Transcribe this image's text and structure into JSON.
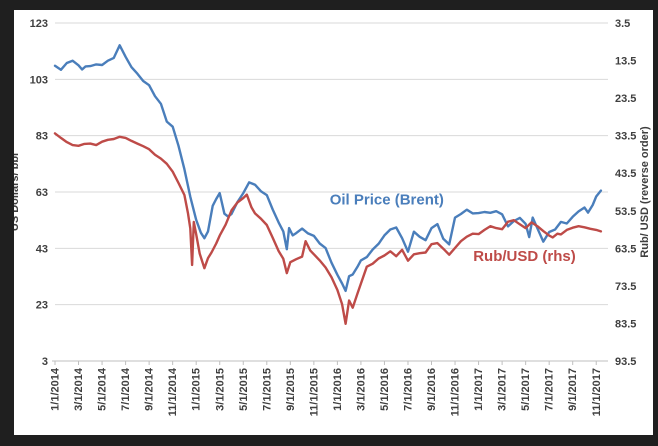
{
  "chart_data": {
    "type": "line",
    "title": "",
    "frame_color": "#1f1f1f",
    "plot": {
      "background": "#ffffff",
      "grid": true,
      "gridline_color": "#d9d9d9",
      "axis_line_color": "#bfbfbf",
      "tick_label_color": "#3f3f3f"
    },
    "x_axis": {
      "start": "1/1/2014",
      "end": "11/1/2017",
      "tick_months": [
        0,
        2,
        4,
        6,
        8,
        10,
        12,
        14,
        16,
        18,
        20,
        22,
        24,
        26,
        28,
        30,
        32,
        34,
        36,
        38,
        40,
        42,
        44,
        46
      ],
      "tick_labels": [
        "1/1/2014",
        "3/1/2014",
        "5/1/2014",
        "7/1/2014",
        "9/1/2014",
        "11/1/2014",
        "1/1/2015",
        "3/1/2015",
        "5/1/2015",
        "7/1/2015",
        "9/1/2015",
        "11/1/2015",
        "1/1/2016",
        "3/1/2016",
        "5/1/2016",
        "7/1/2016",
        "9/1/2016",
        "11/1/2016",
        "1/1/2017",
        "3/1/2017",
        "5/1/2017",
        "7/1/2017",
        "9/1/2017",
        "11/1/2017"
      ]
    },
    "left_axis": {
      "title": "US Dollars/ bbl",
      "min": 3,
      "max": 123,
      "ticks": [
        123,
        103,
        83,
        63,
        43,
        23,
        3
      ]
    },
    "right_axis": {
      "title": "Rub/ USD (reverse order)",
      "min": 3.5,
      "max": 93.5,
      "reversed": true,
      "ticks": [
        3.5,
        13.5,
        23.5,
        33.5,
        43.5,
        53.5,
        63.5,
        73.5,
        83.5,
        93.5
      ]
    },
    "series": [
      {
        "name": "Oil Price (Brent)",
        "axis": "left",
        "color": "#4a7ebb",
        "points": [
          [
            0,
            107.8
          ],
          [
            0.5,
            106.4
          ],
          [
            1,
            108.8
          ],
          [
            1.5,
            109.6
          ],
          [
            2,
            108
          ],
          [
            2.3,
            106.5
          ],
          [
            2.6,
            107.6
          ],
          [
            3,
            107.7
          ],
          [
            3.5,
            108.3
          ],
          [
            4,
            108.1
          ],
          [
            4.5,
            109.6
          ],
          [
            5,
            110.6
          ],
          [
            5.5,
            115.1
          ],
          [
            6,
            111
          ],
          [
            6.5,
            107.3
          ],
          [
            7,
            105
          ],
          [
            7.5,
            102.4
          ],
          [
            8,
            100.9
          ],
          [
            8.5,
            97
          ],
          [
            9,
            94.3
          ],
          [
            9.5,
            88
          ],
          [
            10,
            86.2
          ],
          [
            10.5,
            79.4
          ],
          [
            11,
            71.1
          ],
          [
            11.5,
            61.3
          ],
          [
            12,
            53.1
          ],
          [
            12.4,
            48.5
          ],
          [
            12.7,
            46.6
          ],
          [
            13,
            49
          ],
          [
            13.4,
            58.1
          ],
          [
            13.7,
            60.5
          ],
          [
            14,
            62.6
          ],
          [
            14.4,
            55.3
          ],
          [
            14.7,
            54.3
          ],
          [
            15,
            55.2
          ],
          [
            15.5,
            59.4
          ],
          [
            16,
            62.6
          ],
          [
            16.5,
            66.4
          ],
          [
            17,
            65.6
          ],
          [
            17.5,
            63.3
          ],
          [
            18,
            61.9
          ],
          [
            18.5,
            56.8
          ],
          [
            19,
            52.2
          ],
          [
            19.4,
            49
          ],
          [
            19.7,
            42.7
          ],
          [
            19.9,
            50.2
          ],
          [
            20.2,
            47.6
          ],
          [
            20.5,
            48.4
          ],
          [
            21,
            50
          ],
          [
            21.5,
            48.3
          ],
          [
            22,
            47.4
          ],
          [
            22.5,
            44.7
          ],
          [
            23,
            43.1
          ],
          [
            23.5,
            37.9
          ],
          [
            24,
            33.6
          ],
          [
            24.4,
            30.5
          ],
          [
            24.7,
            27.9
          ],
          [
            25,
            33.1
          ],
          [
            25.3,
            33.7
          ],
          [
            25.7,
            36.4
          ],
          [
            26,
            38.7
          ],
          [
            26.5,
            39.9
          ],
          [
            27,
            42.6
          ],
          [
            27.5,
            44.6
          ],
          [
            28,
            47.6
          ],
          [
            28.5,
            49.7
          ],
          [
            29,
            50.4
          ],
          [
            29.5,
            46.6
          ],
          [
            30,
            41.8
          ],
          [
            30.5,
            48.9
          ],
          [
            31,
            47.1
          ],
          [
            31.5,
            45.9
          ],
          [
            32,
            50.2
          ],
          [
            32.5,
            51.6
          ],
          [
            33,
            46.4
          ],
          [
            33.5,
            44.4
          ],
          [
            34,
            53.9
          ],
          [
            34.5,
            55.2
          ],
          [
            35,
            56.7
          ],
          [
            35.5,
            55.4
          ],
          [
            36,
            55.5
          ],
          [
            36.5,
            55.9
          ],
          [
            37,
            55.6
          ],
          [
            37.5,
            56.2
          ],
          [
            38,
            55.1
          ],
          [
            38.5,
            50.8
          ],
          [
            39,
            52.7
          ],
          [
            39.5,
            53.8
          ],
          [
            40,
            51.7
          ],
          [
            40.3,
            47
          ],
          [
            40.6,
            53.9
          ],
          [
            41,
            50.1
          ],
          [
            41.5,
            45.4
          ],
          [
            42,
            48.8
          ],
          [
            42.5,
            49.7
          ],
          [
            43,
            52.4
          ],
          [
            43.5,
            51.8
          ],
          [
            44,
            54.2
          ],
          [
            44.5,
            56.1
          ],
          [
            45,
            57.5
          ],
          [
            45.3,
            55.7
          ],
          [
            45.7,
            58.4
          ],
          [
            46,
            61.4
          ],
          [
            46.4,
            63.5
          ]
        ]
      },
      {
        "name": "Rub/USD (rhs)",
        "axis": "right",
        "color": "#be4b48",
        "points": [
          [
            0,
            32.9
          ],
          [
            0.5,
            34.1
          ],
          [
            1,
            35.2
          ],
          [
            1.5,
            36
          ],
          [
            2,
            36.2
          ],
          [
            2.5,
            35.7
          ],
          [
            3,
            35.6
          ],
          [
            3.5,
            36
          ],
          [
            4,
            35.1
          ],
          [
            4.5,
            34.6
          ],
          [
            5,
            34.4
          ],
          [
            5.5,
            33.8
          ],
          [
            6,
            34.1
          ],
          [
            6.5,
            34.9
          ],
          [
            7,
            35.6
          ],
          [
            7.5,
            36.3
          ],
          [
            8,
            37.1
          ],
          [
            8.5,
            38.6
          ],
          [
            9,
            39.6
          ],
          [
            9.5,
            41
          ],
          [
            10,
            43.1
          ],
          [
            10.5,
            46.1
          ],
          [
            11,
            49.3
          ],
          [
            11.3,
            54.2
          ],
          [
            11.5,
            58.2
          ],
          [
            11.65,
            67.9
          ],
          [
            11.8,
            56.5
          ],
          [
            12,
            59.8
          ],
          [
            12.3,
            64.9
          ],
          [
            12.7,
            68.8
          ],
          [
            13,
            66.1
          ],
          [
            13.3,
            64.6
          ],
          [
            13.7,
            62.2
          ],
          [
            14,
            60.1
          ],
          [
            14.5,
            57.2
          ],
          [
            15,
            53.4
          ],
          [
            15.5,
            51.3
          ],
          [
            16,
            50.1
          ],
          [
            16.3,
            49.2
          ],
          [
            16.7,
            52.6
          ],
          [
            17,
            54.2
          ],
          [
            17.5,
            55.6
          ],
          [
            18,
            57.3
          ],
          [
            18.5,
            60.7
          ],
          [
            19,
            64.2
          ],
          [
            19.4,
            66.3
          ],
          [
            19.7,
            70.1
          ],
          [
            20,
            67.2
          ],
          [
            20.5,
            66.4
          ],
          [
            21,
            65.7
          ],
          [
            21.3,
            61.6
          ],
          [
            21.7,
            64.1
          ],
          [
            22,
            65.1
          ],
          [
            22.5,
            66.7
          ],
          [
            23,
            68.6
          ],
          [
            23.5,
            71.2
          ],
          [
            24,
            74.6
          ],
          [
            24.4,
            78.4
          ],
          [
            24.7,
            83.6
          ],
          [
            25,
            77.4
          ],
          [
            25.3,
            79.3
          ],
          [
            25.7,
            75.6
          ],
          [
            26,
            72.9
          ],
          [
            26.5,
            68.4
          ],
          [
            27,
            67.6
          ],
          [
            27.5,
            66.2
          ],
          [
            28,
            65.4
          ],
          [
            28.5,
            64.3
          ],
          [
            29,
            65.6
          ],
          [
            29.5,
            63.9
          ],
          [
            30,
            66.8
          ],
          [
            30.5,
            65.1
          ],
          [
            31,
            64.8
          ],
          [
            31.5,
            64.6
          ],
          [
            32,
            62.4
          ],
          [
            32.5,
            62.1
          ],
          [
            33,
            63.6
          ],
          [
            33.5,
            65.2
          ],
          [
            34,
            63.4
          ],
          [
            34.5,
            61.6
          ],
          [
            35,
            60.4
          ],
          [
            35.5,
            59.6
          ],
          [
            36,
            59.7
          ],
          [
            36.5,
            58.6
          ],
          [
            37,
            57.6
          ],
          [
            37.5,
            58.1
          ],
          [
            38,
            58.4
          ],
          [
            38.5,
            56.4
          ],
          [
            39,
            56
          ],
          [
            39.5,
            57.1
          ],
          [
            40,
            58.1
          ],
          [
            40.5,
            56.6
          ],
          [
            41,
            57.6
          ],
          [
            41.5,
            58.9
          ],
          [
            42,
            60.1
          ],
          [
            42.3,
            60.6
          ],
          [
            42.7,
            59.6
          ],
          [
            43,
            59.8
          ],
          [
            43.5,
            58.6
          ],
          [
            44,
            58
          ],
          [
            44.5,
            57.6
          ],
          [
            45,
            57.9
          ],
          [
            45.5,
            58.3
          ],
          [
            46,
            58.6
          ],
          [
            46.4,
            59
          ]
        ]
      }
    ],
    "annotations": [
      {
        "text": "Oil Price (Brent)",
        "color": "#4a7ebb",
        "x_month": 28.2,
        "left_axis_value": 58.5
      },
      {
        "text": "Rub/USD (rhs)",
        "color": "#be4b48",
        "x_month": 39.9,
        "left_axis_value": 38.5
      }
    ]
  }
}
